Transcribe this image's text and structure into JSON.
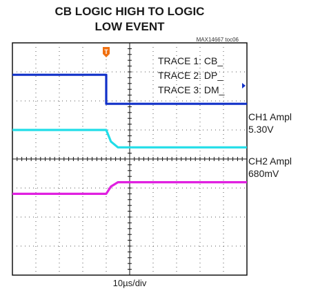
{
  "chart_data": {
    "type": "line",
    "title_line1": "CB LOGIC HIGH TO LOGIC",
    "title_line2": "LOW EVENT",
    "part_id": "MAX14667 toc06",
    "xlabel": "10µs/div",
    "ylabel": "",
    "grid": true,
    "x_divisions": 10,
    "y_divisions": 8,
    "trigger_div": 4,
    "trigger_marker_label": "T",
    "legend": [
      "TRACE 1: CB_",
      "TRACE 2: DP_",
      "TRACE 3: DM_"
    ],
    "channel_labels": [
      {
        "name": "CH1 Ampl",
        "value": "5.30V"
      },
      {
        "name": "CH2 Ampl",
        "value": "680mV"
      }
    ],
    "series": [
      {
        "name": "TRACE 1: CB_",
        "color": "#1030c8",
        "x": [
          0,
          4,
          4,
          10
        ],
        "y": [
          6.9,
          6.9,
          5.9,
          5.9
        ]
      },
      {
        "name": "TRACE 2: DP_",
        "color": "#20dde8",
        "x": [
          0,
          4,
          4.2,
          4.5,
          10
        ],
        "y": [
          5.0,
          5.0,
          4.6,
          4.4,
          4.4
        ]
      },
      {
        "name": "TRACE 3: DM_",
        "color": "#e020e0",
        "x": [
          0,
          4,
          4.2,
          4.5,
          10
        ],
        "y": [
          2.8,
          2.8,
          3.05,
          3.2,
          3.2
        ]
      }
    ]
  }
}
